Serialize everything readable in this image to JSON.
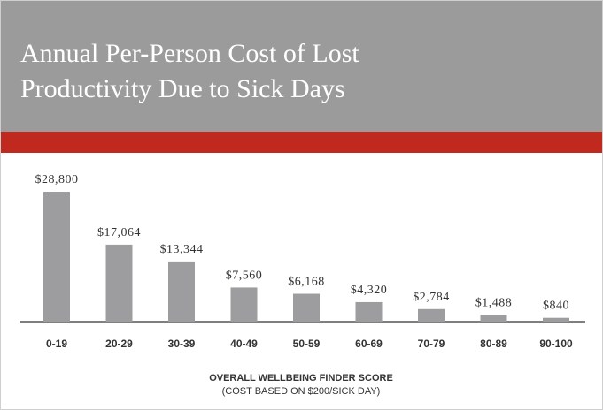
{
  "chart_data": {
    "type": "bar",
    "title": "Annual Per-Person Cost of Lost Productivity Due to Sick Days",
    "x_label": "OVERALL WELLBEING FINDER SCORE",
    "x_sublabel": "(COST BASED ON $200/SICK DAY)",
    "categories": [
      "0-19",
      "20-29",
      "30-39",
      "40-49",
      "50-59",
      "60-69",
      "70-79",
      "80-89",
      "90-100"
    ],
    "values": [
      28800,
      17064,
      13344,
      7560,
      6168,
      4320,
      2784,
      1488,
      840
    ],
    "value_labels": [
      "$28,800",
      "$17,064",
      "$13,344",
      "$7,560",
      "$6,168",
      "$4,320",
      "$2,784",
      "$1,488",
      "$840"
    ],
    "color": "#9d9d9f"
  }
}
